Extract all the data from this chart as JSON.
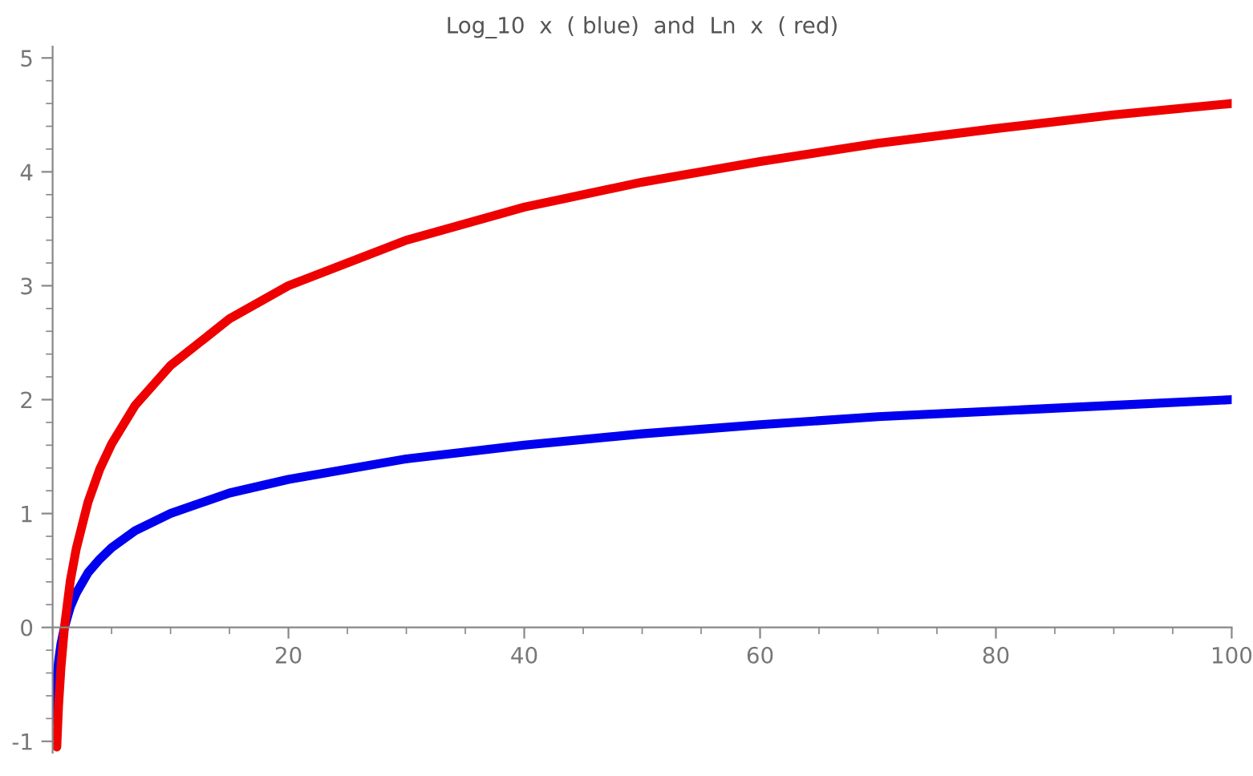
{
  "chart_data": {
    "type": "line",
    "title": "Log_10  x  ( blue)  and  Ln  x  ( red)",
    "series": [
      {
        "color": "#0000ee",
        "x": [
          0.15,
          0.2,
          0.3,
          0.5,
          0.7,
          1,
          1.5,
          2,
          3,
          4,
          5,
          7,
          10,
          15,
          20,
          30,
          40,
          50,
          60,
          70,
          80,
          90,
          100
        ],
        "values": [
          -0.82,
          -0.7,
          -0.52,
          -0.3,
          -0.15,
          0,
          0.18,
          0.3,
          0.48,
          0.6,
          0.7,
          0.85,
          1,
          1.18,
          1.3,
          1.48,
          1.6,
          1.7,
          1.78,
          1.85,
          1.9,
          1.95,
          2
        ]
      },
      {
        "color": "#ee0000",
        "x": [
          0.35,
          0.5,
          0.7,
          1,
          1.5,
          2,
          3,
          4,
          5,
          7,
          10,
          15,
          20,
          30,
          40,
          50,
          60,
          70,
          80,
          90,
          100
        ],
        "values": [
          -1.05,
          -0.69,
          -0.36,
          0,
          0.41,
          0.69,
          1.1,
          1.39,
          1.61,
          1.95,
          2.3,
          2.71,
          3,
          3.4,
          3.69,
          3.91,
          4.09,
          4.25,
          4.38,
          4.5,
          4.6
        ]
      }
    ],
    "xlim": [
      0,
      100
    ],
    "ylim": [
      -1.1,
      5.1
    ],
    "xticks": [
      20,
      40,
      60,
      80,
      100
    ],
    "yticks": [
      -1,
      0,
      1,
      2,
      3,
      4,
      5
    ],
    "grid": false,
    "legend": false,
    "line_style": "solid",
    "marker": "none"
  }
}
